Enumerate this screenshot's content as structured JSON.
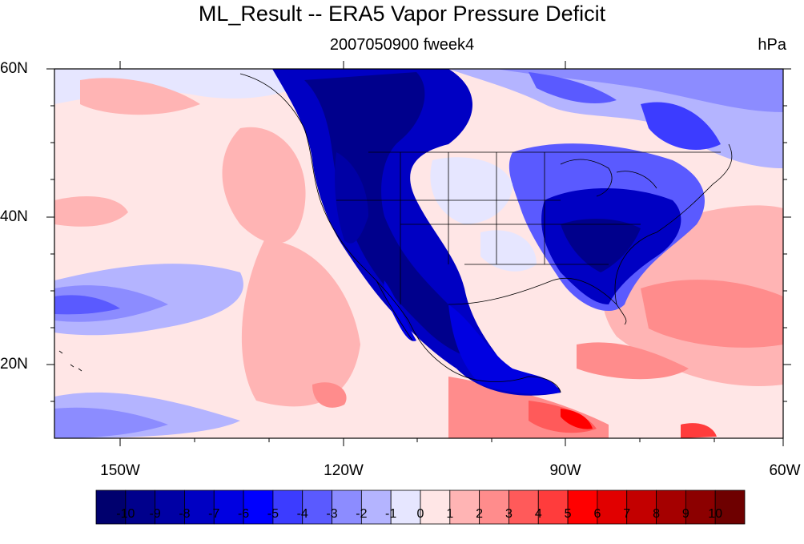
{
  "title": "ML_Result -- ERA5 Vapor Pressure Deficit",
  "subtitle": "2007050900 fweek4",
  "units": "hPa",
  "map": {
    "lat_ticks": [
      "60N",
      "40N",
      "20N"
    ],
    "lon_ticks": [
      "150W",
      "120W",
      "90W",
      "60W"
    ],
    "lon_range": [
      -159,
      -60
    ],
    "lat_range": [
      10,
      60
    ]
  },
  "colorbar": {
    "levels": [
      "-10",
      "-9",
      "-8",
      "-7",
      "-6",
      "-5",
      "-4",
      "-3",
      "-2",
      "-1",
      "0",
      "1",
      "2",
      "3",
      "4",
      "5",
      "6",
      "7",
      "8",
      "9",
      "10"
    ],
    "colors": [
      "#00006e",
      "#00008c",
      "#0000a5",
      "#0000c3",
      "#0000e1",
      "#0000ff",
      "#3c3cff",
      "#5a5aff",
      "#8c8cff",
      "#b4b4ff",
      "#e6e6ff",
      "#ffe6e6",
      "#ffb4b4",
      "#ff8c8c",
      "#ff5a5a",
      "#ff3c3c",
      "#ff0000",
      "#e10000",
      "#c30000",
      "#a50000",
      "#8c0000",
      "#6e0000"
    ]
  },
  "colors": {
    "ocean_background": "#ffe6e6",
    "border": "#000000"
  }
}
